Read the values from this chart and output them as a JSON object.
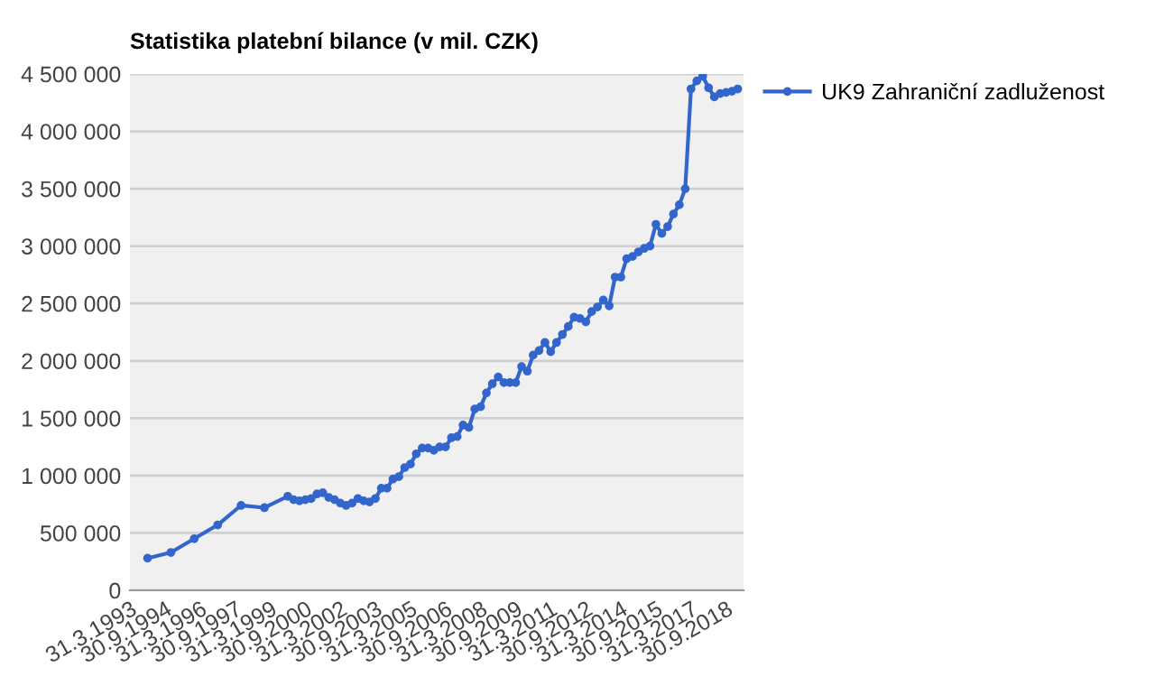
{
  "chart_data": {
    "type": "line",
    "title": "Statistika platební bilance (v mil. CZK)",
    "x": [
      "1993-12-31",
      "1994-12-31",
      "1995-12-31",
      "1996-12-31",
      "1997-12-31",
      "1998-12-31",
      "1999-12-31",
      "2000-03-31",
      "2000-06-30",
      "2000-09-30",
      "2000-12-31",
      "2001-03-31",
      "2001-06-30",
      "2001-09-30",
      "2001-12-31",
      "2002-03-31",
      "2002-06-30",
      "2002-09-30",
      "2002-12-31",
      "2003-03-31",
      "2003-06-30",
      "2003-09-30",
      "2003-12-31",
      "2004-03-31",
      "2004-06-30",
      "2004-09-30",
      "2004-12-31",
      "2005-03-31",
      "2005-06-30",
      "2005-09-30",
      "2005-12-31",
      "2006-03-31",
      "2006-06-30",
      "2006-09-30",
      "2006-12-31",
      "2007-03-31",
      "2007-06-30",
      "2007-09-30",
      "2007-12-31",
      "2008-03-31",
      "2008-06-30",
      "2008-09-30",
      "2008-12-31",
      "2009-03-31",
      "2009-06-30",
      "2009-09-30",
      "2009-12-31",
      "2010-03-31",
      "2010-06-30",
      "2010-09-30",
      "2010-12-31",
      "2011-03-31",
      "2011-06-30",
      "2011-09-30",
      "2011-12-31",
      "2012-03-31",
      "2012-06-30",
      "2012-09-30",
      "2012-12-31",
      "2013-03-31",
      "2013-06-30",
      "2013-09-30",
      "2013-12-31",
      "2014-03-31",
      "2014-06-30",
      "2014-09-30",
      "2014-12-31",
      "2015-03-31",
      "2015-06-30",
      "2015-09-30",
      "2015-12-31",
      "2016-03-31",
      "2016-06-30",
      "2016-09-30",
      "2016-12-31",
      "2017-03-31",
      "2017-06-30",
      "2017-09-30",
      "2017-12-31",
      "2018-03-31",
      "2018-06-30",
      "2018-09-30",
      "2018-12-31",
      "2019-03-31"
    ],
    "series": [
      {
        "name": "UK9 Zahraniční zadluženost",
        "color": "#3366cc",
        "values": [
          280000,
          330000,
          450000,
          570000,
          740000,
          720000,
          820000,
          790000,
          780000,
          790000,
          800000,
          840000,
          850000,
          810000,
          790000,
          760000,
          740000,
          760000,
          800000,
          780000,
          770000,
          800000,
          890000,
          890000,
          970000,
          990000,
          1070000,
          1100000,
          1190000,
          1240000,
          1240000,
          1220000,
          1250000,
          1250000,
          1330000,
          1340000,
          1440000,
          1420000,
          1580000,
          1600000,
          1720000,
          1800000,
          1860000,
          1810000,
          1810000,
          1810000,
          1950000,
          1910000,
          2050000,
          2090000,
          2160000,
          2080000,
          2160000,
          2230000,
          2300000,
          2380000,
          2370000,
          2340000,
          2430000,
          2470000,
          2530000,
          2480000,
          2730000,
          2730000,
          2890000,
          2910000,
          2950000,
          2980000,
          3000000,
          3190000,
          3110000,
          3170000,
          3280000,
          3360000,
          3500000,
          4370000,
          4440000,
          4480000,
          4380000,
          4300000,
          4330000,
          4340000,
          4350000,
          4370000
        ]
      }
    ],
    "xlim": [
      "1993-03-31",
      "2019-06-30"
    ],
    "xticks": [
      {
        "value": "1993-03-31",
        "label": "31.3.1993"
      },
      {
        "value": "1994-09-30",
        "label": "30.9.1994"
      },
      {
        "value": "1996-03-31",
        "label": "31.3.1996"
      },
      {
        "value": "1997-09-30",
        "label": "30.9.1997"
      },
      {
        "value": "1999-03-31",
        "label": "31.3.1999"
      },
      {
        "value": "2000-09-30",
        "label": "30.9.2000"
      },
      {
        "value": "2002-03-31",
        "label": "31.3.2002"
      },
      {
        "value": "2003-09-30",
        "label": "30.9.2003"
      },
      {
        "value": "2005-03-31",
        "label": "31.3.2005"
      },
      {
        "value": "2006-09-30",
        "label": "30.9.2006"
      },
      {
        "value": "2008-03-31",
        "label": "31.3.2008"
      },
      {
        "value": "2009-09-30",
        "label": "30.9.2009"
      },
      {
        "value": "2011-03-31",
        "label": "31.3.2011"
      },
      {
        "value": "2012-09-30",
        "label": "30.9.2012"
      },
      {
        "value": "2014-03-31",
        "label": "31.3.2014"
      },
      {
        "value": "2015-09-30",
        "label": "30.9.2015"
      },
      {
        "value": "2017-03-31",
        "label": "31.3.2017"
      },
      {
        "value": "2018-09-30",
        "label": "30.9.2018"
      }
    ],
    "ylim": [
      0,
      4500000
    ],
    "yticks": [
      0,
      {
        "value": 500000,
        "label": "500 000"
      },
      {
        "value": 1000000,
        "label": "1 000 000"
      },
      {
        "value": 1500000,
        "label": "1 500 000"
      },
      {
        "value": 2000000,
        "label": "2 000 000"
      },
      {
        "value": 2500000,
        "label": "2 500 000"
      },
      {
        "value": 3000000,
        "label": "3 000 000"
      },
      {
        "value": 3500000,
        "label": "3 500 000"
      },
      {
        "value": 4000000,
        "label": "4 000 000"
      },
      {
        "value": 4500000,
        "label": "4 500 000"
      }
    ],
    "grid": "y",
    "legend": "right",
    "marker": "circle",
    "line_style": "solid"
  }
}
